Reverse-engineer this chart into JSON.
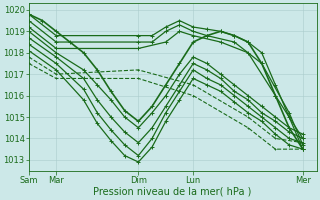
{
  "bg_color": "#cce8e8",
  "grid_color": "#aacccc",
  "line_color": "#1a6b1a",
  "xlabel_text": "Pression niveau de la mer( hPa )",
  "xtick_labels": [
    "Sam",
    "Mar",
    "Dim",
    "Lun",
    "Mer"
  ],
  "xtick_positions": [
    0,
    12,
    48,
    72,
    120
  ],
  "xlim": [
    0,
    126
  ],
  "ylim": [
    1012.5,
    1020.3
  ],
  "yticks": [
    1013,
    1014,
    1015,
    1016,
    1017,
    1018,
    1019,
    1020
  ],
  "xlabel_fontsize": 7,
  "ytick_fontsize": 6,
  "xtick_fontsize": 6,
  "lines": [
    {
      "x": [
        0,
        12,
        48,
        54,
        60,
        66,
        72,
        78,
        84,
        90,
        96,
        102,
        108,
        114,
        120
      ],
      "y": [
        1019.8,
        1018.8,
        1018.8,
        1018.8,
        1019.2,
        1019.5,
        1019.2,
        1019.1,
        1019.0,
        1018.8,
        1018.5,
        1018.0,
        1016.5,
        1015.0,
        1013.5
      ],
      "lw": 0.9,
      "ls": "-",
      "ms": 2.5
    },
    {
      "x": [
        0,
        12,
        48,
        54,
        60,
        66,
        72,
        78,
        90,
        102,
        114,
        120
      ],
      "y": [
        1019.5,
        1018.5,
        1018.5,
        1018.5,
        1019.0,
        1019.3,
        1019.0,
        1018.8,
        1018.5,
        1017.5,
        1015.2,
        1013.7
      ],
      "lw": 0.9,
      "ls": "-",
      "ms": 2.5
    },
    {
      "x": [
        0,
        12,
        48,
        60,
        66,
        72,
        84,
        96,
        108,
        120
      ],
      "y": [
        1019.2,
        1018.2,
        1018.2,
        1018.5,
        1019.0,
        1018.8,
        1018.5,
        1018.0,
        1016.0,
        1014.0
      ],
      "lw": 0.9,
      "ls": "-",
      "ms": 2.5
    },
    {
      "x": [
        0,
        12,
        24,
        30,
        36,
        42,
        48,
        54,
        60,
        66,
        72,
        78,
        84,
        90,
        96,
        102,
        108,
        114,
        120
      ],
      "y": [
        1019.0,
        1018.0,
        1017.2,
        1016.5,
        1015.8,
        1015.0,
        1014.5,
        1015.2,
        1016.0,
        1017.0,
        1017.8,
        1017.5,
        1017.0,
        1016.5,
        1016.0,
        1015.5,
        1015.0,
        1014.5,
        1014.2
      ],
      "lw": 0.9,
      "ls": "-",
      "ms": 2.5
    },
    {
      "x": [
        0,
        12,
        24,
        30,
        36,
        42,
        48,
        54,
        60,
        66,
        72,
        78,
        84,
        90,
        96,
        102,
        108,
        114,
        120
      ],
      "y": [
        1018.7,
        1017.8,
        1016.8,
        1015.8,
        1015.0,
        1014.3,
        1013.8,
        1014.5,
        1015.5,
        1016.5,
        1017.5,
        1017.2,
        1016.8,
        1016.2,
        1015.8,
        1015.2,
        1014.8,
        1014.3,
        1014.0
      ],
      "lw": 0.9,
      "ls": "-",
      "ms": 2.5
    },
    {
      "x": [
        0,
        12,
        24,
        30,
        36,
        42,
        48,
        54,
        60,
        66,
        72,
        78,
        84,
        90,
        96,
        102,
        108,
        114,
        120
      ],
      "y": [
        1018.4,
        1017.5,
        1016.3,
        1015.2,
        1014.4,
        1013.7,
        1013.2,
        1014.0,
        1015.2,
        1016.2,
        1017.2,
        1016.8,
        1016.5,
        1016.0,
        1015.5,
        1015.0,
        1014.5,
        1014.0,
        1013.8
      ],
      "lw": 0.9,
      "ls": "-",
      "ms": 2.5
    },
    {
      "x": [
        0,
        12,
        24,
        30,
        36,
        42,
        48,
        54,
        60,
        66,
        72,
        78,
        84,
        90,
        96,
        102,
        108,
        114,
        120
      ],
      "y": [
        1018.1,
        1017.2,
        1015.8,
        1014.7,
        1013.9,
        1013.2,
        1012.9,
        1013.6,
        1014.8,
        1015.8,
        1016.8,
        1016.5,
        1016.2,
        1015.7,
        1015.2,
        1014.8,
        1014.2,
        1013.7,
        1013.5
      ],
      "lw": 0.9,
      "ls": "-",
      "ms": 2.5
    },
    {
      "x": [
        0,
        12,
        48,
        72,
        96,
        108,
        120
      ],
      "y": [
        1017.8,
        1017.0,
        1017.2,
        1016.5,
        1015.0,
        1014.0,
        1013.8
      ],
      "lw": 0.8,
      "ls": "--",
      "ms": 2.0
    },
    {
      "x": [
        0,
        12,
        48,
        72,
        96,
        108,
        120
      ],
      "y": [
        1017.5,
        1016.8,
        1016.8,
        1016.0,
        1014.5,
        1013.5,
        1013.5
      ],
      "lw": 0.8,
      "ls": "--",
      "ms": 2.0
    },
    {
      "x": [
        0,
        6,
        12,
        18,
        24,
        30,
        36,
        42,
        48,
        54,
        60,
        66,
        72,
        78,
        84,
        90,
        96,
        102,
        108,
        114,
        120
      ],
      "y": [
        1019.8,
        1019.5,
        1019.0,
        1018.5,
        1018.0,
        1017.2,
        1016.2,
        1015.3,
        1014.8,
        1015.5,
        1016.5,
        1017.5,
        1018.5,
        1018.8,
        1019.0,
        1018.8,
        1018.5,
        1017.5,
        1016.0,
        1014.5,
        1013.5
      ],
      "lw": 1.2,
      "ls": "-",
      "ms": 3.0
    }
  ]
}
